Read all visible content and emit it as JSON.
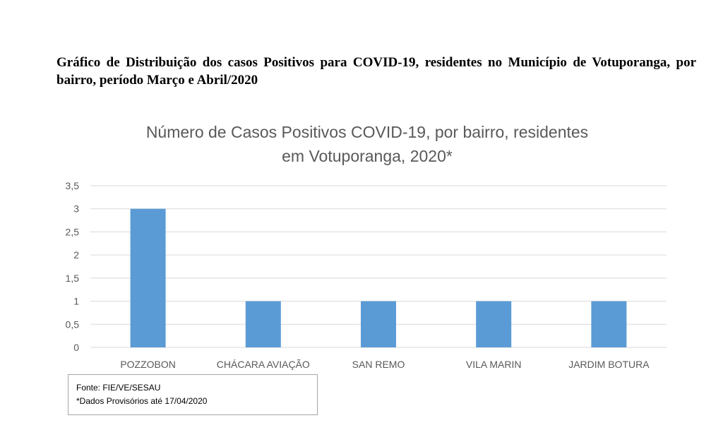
{
  "document": {
    "heading": "Gráfico de Distribuição dos casos Positivos para COVID-19, residentes no Município de Votuporanga, por bairro, período Março e Abril/2020"
  },
  "chart_data": {
    "type": "bar",
    "title_lines": [
      "Número de Casos Positivos COVID-19, por bairro, residentes",
      "em Votuporanga, 2020*"
    ],
    "categories": [
      "POZZOBON",
      "CHÁCARA AVIAÇÃO",
      "SAN REMO",
      "VILA MARIN",
      "JARDIM BOTURA"
    ],
    "values": [
      3,
      1,
      1,
      1,
      1
    ],
    "ylim": [
      0,
      3.5
    ],
    "yticks": [
      "0",
      "0,5",
      "1",
      "1,5",
      "2",
      "2,5",
      "3",
      "3,5"
    ],
    "grid": true,
    "bar_color": "#5b9bd5",
    "grid_color": "#d9d9d9",
    "text_color": "#595959"
  },
  "source": {
    "line1": "Fonte: FIE/VE/SESAU",
    "line2": "*Dados Provisórios até 17/04/2020"
  }
}
